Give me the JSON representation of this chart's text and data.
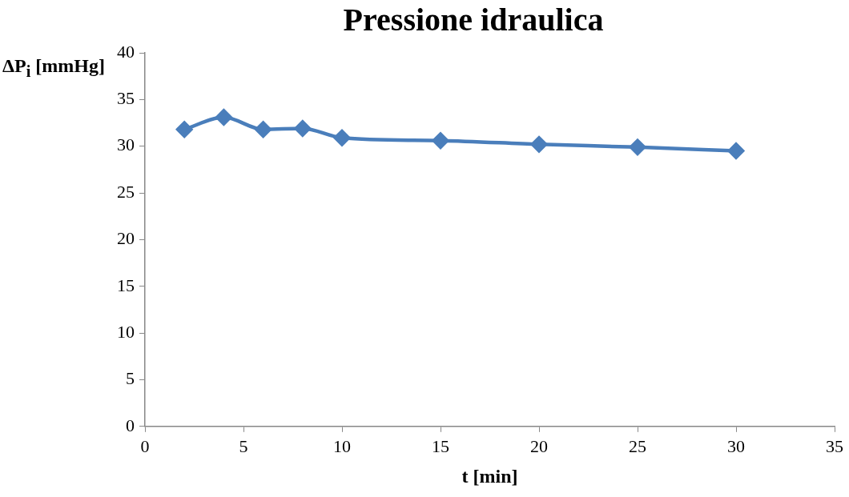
{
  "chart_data": {
    "type": "line",
    "title": "Pressione idraulica",
    "xlabel": "t [min]",
    "ylabel": "ΔP$_{i}$ [mmHg]",
    "x": [
      2,
      4,
      6,
      8,
      10,
      15,
      20,
      25,
      30
    ],
    "series": [
      {
        "color": "#4a7ebb",
        "values": [
          31.8,
          33.1,
          31.8,
          31.9,
          30.9,
          30.6,
          30.2,
          29.9,
          29.5
        ]
      }
    ],
    "xlim": [
      0,
      35
    ],
    "xticks": [
      0,
      5,
      10,
      15,
      20,
      25,
      30,
      35
    ],
    "ylim": [
      0,
      40
    ],
    "yticks": [
      0,
      5,
      10,
      15,
      20,
      25,
      30,
      35,
      40
    ],
    "grid": false,
    "legend": false,
    "marker": "diamond",
    "line_style": "solid"
  }
}
